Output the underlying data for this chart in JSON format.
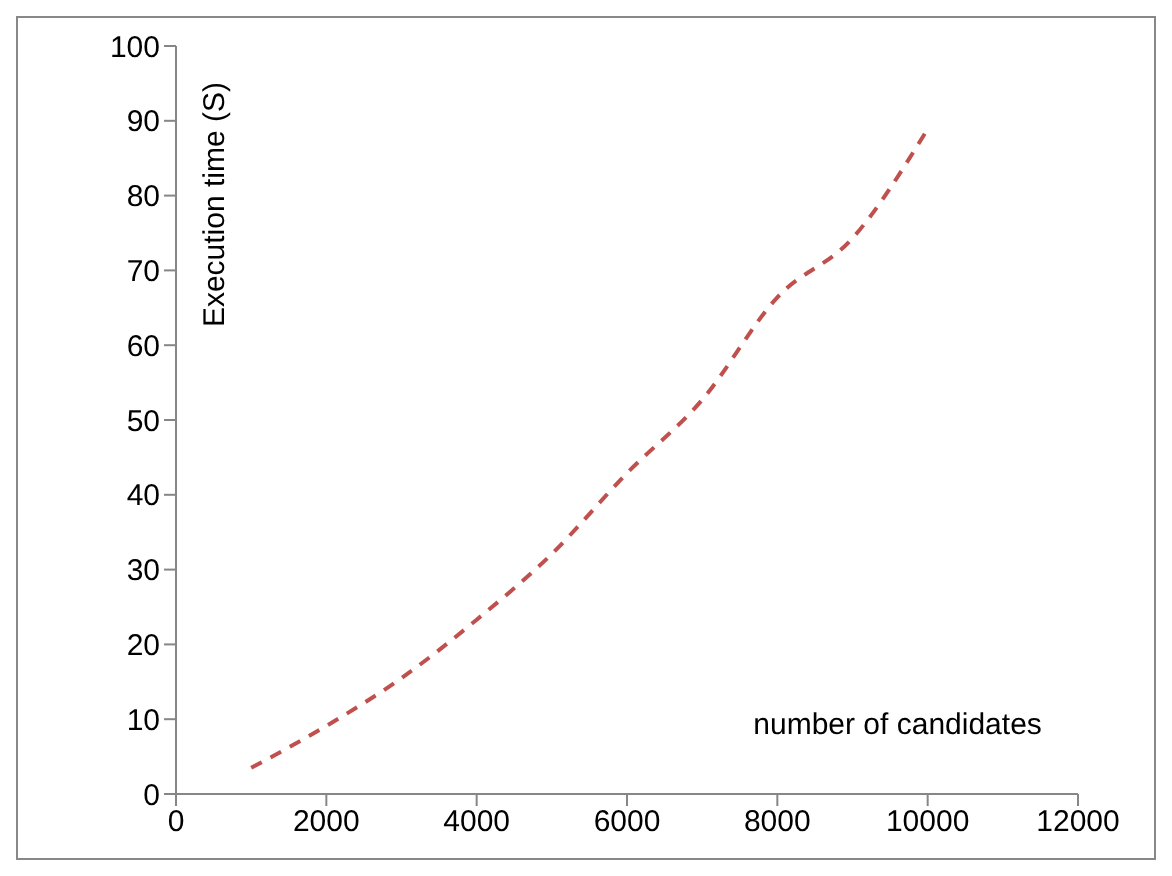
{
  "chart_data": {
    "type": "line",
    "xlabel": "number of candidates",
    "ylabel": "Execution time (S)",
    "x": [
      1000,
      2000,
      3000,
      4000,
      5000,
      6000,
      7000,
      8000,
      9000,
      10000
    ],
    "series": [
      {
        "color": "#c0504d",
        "values": [
          3.5,
          9.1,
          15.5,
          23.3,
          32.1,
          42.9,
          52.7,
          66.4,
          74.3,
          88.9
        ]
      }
    ],
    "xlim": [
      0,
      12000
    ],
    "xticks": [
      0,
      2000,
      4000,
      6000,
      8000,
      10000,
      12000
    ],
    "ylim": [
      0,
      100
    ],
    "yticks": [
      0,
      10,
      20,
      30,
      40,
      50,
      60,
      70,
      80,
      90,
      100
    ],
    "grid": false,
    "legend": false,
    "marker": "none",
    "line_style": "dashed"
  }
}
